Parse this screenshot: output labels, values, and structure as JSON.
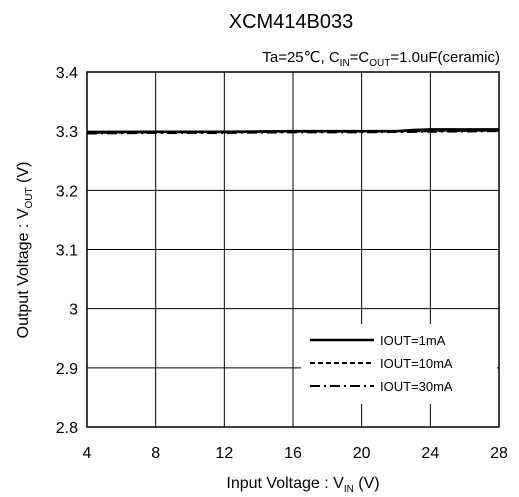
{
  "chart_data": {
    "type": "line",
    "title": "XCM414B033",
    "subtitle": {
      "prefix": "Ta=25℃, C",
      "in_sub": "IN",
      "eq": "=C",
      "out_sub": "OUT",
      "suffix": "=1.0uF(ceramic)"
    },
    "xlabel": {
      "main": "Input Voltage : V",
      "sub": "IN",
      "unit": " (V)"
    },
    "ylabel": {
      "main": "Output Voltage : V",
      "sub": "OUT",
      "unit": " (V)"
    },
    "xlim": [
      4,
      28
    ],
    "ylim": [
      2.8,
      3.4
    ],
    "xticks": [
      4,
      8,
      12,
      16,
      20,
      24,
      28
    ],
    "yticks": [
      2.8,
      2.9,
      3.0,
      3.1,
      3.2,
      3.3,
      3.4
    ],
    "xtick_labels": [
      "4",
      "8",
      "12",
      "16",
      "20",
      "24",
      "28"
    ],
    "ytick_labels": [
      "2.8",
      "2.9",
      "3",
      "3.1",
      "3.2",
      "3.3",
      "3.4"
    ],
    "grid": true,
    "legend_position": "bottom-right",
    "series": [
      {
        "name": "IOUT=1mA",
        "style": "solid",
        "x": [
          4,
          8,
          12,
          16,
          20,
          22,
          23,
          24,
          28
        ],
        "y": [
          3.298,
          3.299,
          3.299,
          3.3,
          3.3,
          3.3,
          3.302,
          3.303,
          3.303
        ]
      },
      {
        "name": "IOUT=10mA",
        "style": "dashed",
        "x": [
          4,
          8,
          12,
          16,
          20,
          24,
          28
        ],
        "y": [
          3.297,
          3.298,
          3.298,
          3.299,
          3.299,
          3.3,
          3.301
        ]
      },
      {
        "name": "IOUT=30mA",
        "style": "dashdot",
        "x": [
          4,
          8,
          12,
          16,
          20,
          24,
          28
        ],
        "y": [
          3.296,
          3.297,
          3.297,
          3.298,
          3.298,
          3.299,
          3.3
        ]
      }
    ]
  }
}
